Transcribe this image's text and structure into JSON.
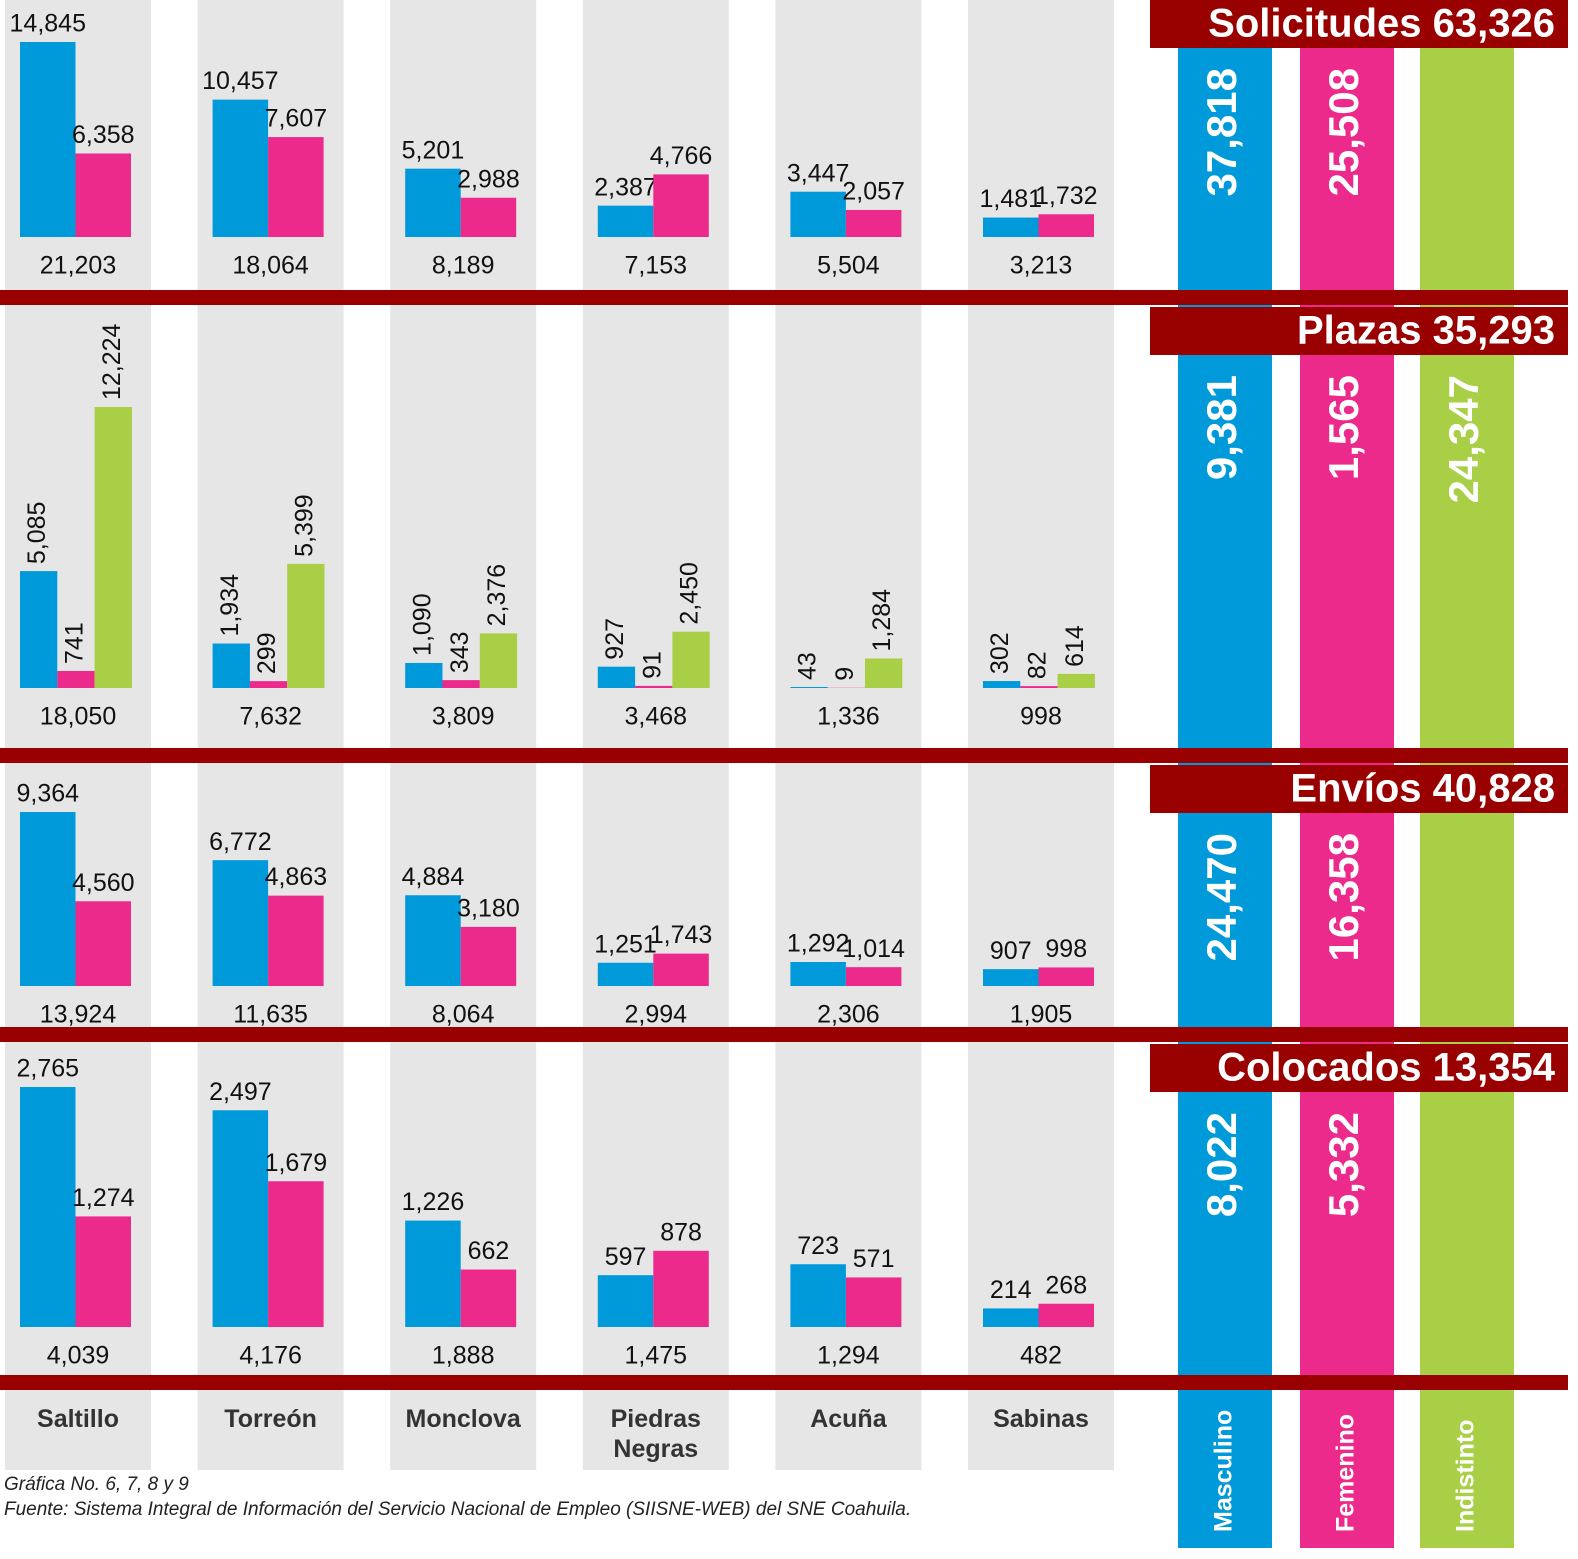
{
  "chart_data": {
    "type": "bar",
    "categories": [
      "Saltillo",
      "Torreón",
      "Monclova",
      "Piedras Negras",
      "Acuña",
      "Sabinas"
    ],
    "series": [
      {
        "name": "Masculino",
        "color": "#0099da"
      },
      {
        "name": "Femenino",
        "color": "#ec2a8c"
      },
      {
        "name": "Indistinto",
        "color": "#a8cf45"
      }
    ],
    "panels": [
      {
        "title": "Solicitudes 63,326",
        "series": [
          {
            "values": [
              14845,
              10457,
              5201,
              2387,
              3447,
              1481
            ],
            "value_labels": [
              "14,845",
              "10,457",
              "5,201",
              "2,387",
              "3,447",
              "1,481"
            ],
            "total": 37818,
            "total_label": "37,818"
          },
          {
            "values": [
              6358,
              7607,
              2988,
              4766,
              2057,
              1732
            ],
            "value_labels": [
              "6,358",
              "7,607",
              "2,988",
              "4,766",
              "2,057",
              "1,732"
            ],
            "total": 25508,
            "total_label": "25,508"
          }
        ],
        "totals": [
          21203,
          18064,
          8189,
          7153,
          5504,
          3213
        ],
        "total_labels": [
          "21,203",
          "18,064",
          "8,189",
          "7,153",
          "5,504",
          "3,213"
        ]
      },
      {
        "title": "Plazas 35,293",
        "series": [
          {
            "values": [
              5085,
              1934,
              1090,
              927,
              43,
              302
            ],
            "value_labels": [
              "5,085",
              "1,934",
              "1,090",
              "927",
              "43",
              "302"
            ],
            "total": 9381,
            "total_label": "9,381"
          },
          {
            "values": [
              741,
              299,
              343,
              91,
              9,
              82
            ],
            "value_labels": [
              "741",
              "299",
              "343",
              "91",
              "9",
              "82"
            ],
            "total": 1565,
            "total_label": "1,565"
          },
          {
            "values": [
              12224,
              5399,
              2376,
              2450,
              1284,
              614
            ],
            "value_labels": [
              "12,224",
              "5,399",
              "2,376",
              "2,450",
              "1,284",
              "614"
            ],
            "total": 24347,
            "total_label": "24,347"
          }
        ],
        "totals": [
          18050,
          7632,
          3809,
          3468,
          1336,
          998
        ],
        "total_labels": [
          "18,050",
          "7,632",
          "3,809",
          "3,468",
          "1,336",
          "998"
        ]
      },
      {
        "title": "Envíos 40,828",
        "series": [
          {
            "values": [
              9364,
              6772,
              4884,
              1251,
              1292,
              907
            ],
            "value_labels": [
              "9,364",
              "6,772",
              "4,884",
              "1,251",
              "1,292",
              "907"
            ],
            "total": 24470,
            "total_label": "24,470"
          },
          {
            "values": [
              4560,
              4863,
              3180,
              1743,
              1014,
              998
            ],
            "value_labels": [
              "4,560",
              "4,863",
              "3,180",
              "1,743",
              "1,014",
              "998"
            ],
            "total": 16358,
            "total_label": "16,358"
          }
        ],
        "totals": [
          13924,
          11635,
          8064,
          2994,
          2306,
          1905
        ],
        "total_labels": [
          "13,924",
          "11,635",
          "8,064",
          "2,994",
          "2,306",
          "1,905"
        ]
      },
      {
        "title": "Colocados 13,354",
        "series": [
          {
            "values": [
              2765,
              2497,
              1226,
              597,
              723,
              214
            ],
            "value_labels": [
              "2,765",
              "2,497",
              "1,226",
              "597",
              "723",
              "214"
            ],
            "total": 8022,
            "total_label": "8,022"
          },
          {
            "values": [
              1274,
              1679,
              662,
              878,
              571,
              268
            ],
            "value_labels": [
              "1,274",
              "1,679",
              "662",
              "878",
              "571",
              "268"
            ],
            "total": 5332,
            "total_label": "5,332"
          }
        ],
        "totals": [
          4039,
          4176,
          1888,
          1475,
          1294,
          482
        ],
        "total_labels": [
          "4,039",
          "4,176",
          "1,888",
          "1,475",
          "1,294",
          "482"
        ]
      }
    ],
    "notes": [
      "Gráfica No. 6, 7, 8 y 9",
      "Fuente: Sistema Integral de Información del Servicio Nacional de Empleo (SIISNE-WEB) del SNE Coahuila."
    ]
  }
}
